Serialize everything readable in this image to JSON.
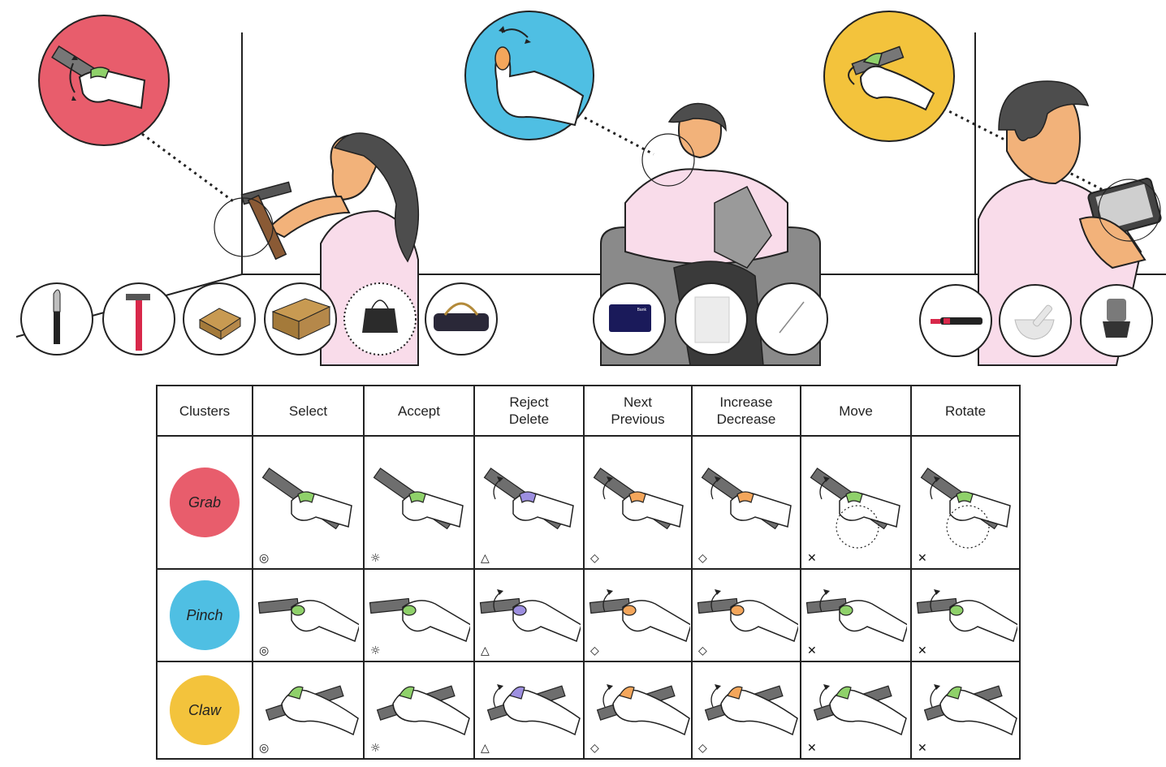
{
  "colors": {
    "grab": "#e85d6c",
    "pinch": "#4fbfe3",
    "claw": "#f3c33c",
    "finger_green": "#8fd16a",
    "finger_orange": "#f4a65b",
    "finger_purple": "#9d8fe0",
    "skin": "#f2b27a",
    "shirt": "#f9dcea",
    "hair": "#4d4d4d",
    "tool": "#6e6e6e",
    "sofa": "#8a8a8a"
  },
  "scene": {
    "grab_objects": [
      "knife",
      "hammer",
      "small-box",
      "large-box",
      "shopping-bag",
      "duffel-bag"
    ],
    "pinch_objects": [
      "bank-card",
      "paper-sheet",
      "needle"
    ],
    "claw_objects": [
      "marker-pen",
      "mortar-and-pestle",
      "dish-brush"
    ],
    "bank_card_text": "Bank"
  },
  "table": {
    "header_corner": "Clusters",
    "columns": [
      {
        "key": "select",
        "label": "Select"
      },
      {
        "key": "accept",
        "label": "Accept"
      },
      {
        "key": "reject",
        "label": "Reject\nDelete"
      },
      {
        "key": "next",
        "label": "Next\nPrevious"
      },
      {
        "key": "increase",
        "label": "Increase\nDecrease"
      },
      {
        "key": "move",
        "label": "Move"
      },
      {
        "key": "rotate",
        "label": "Rotate"
      }
    ],
    "rows": [
      {
        "cluster": "Grab",
        "color_key": "grab",
        "marks": [
          "◎",
          "☼",
          "△",
          "◇",
          "◇",
          "✕",
          "✕"
        ]
      },
      {
        "cluster": "Pinch",
        "color_key": "pinch",
        "marks": [
          "◎",
          "☼",
          "△",
          "◇",
          "◇",
          "✕",
          "✕"
        ]
      },
      {
        "cluster": "Claw",
        "color_key": "claw",
        "marks": [
          "◎",
          "☼",
          "△",
          "◇",
          "◇",
          "✕",
          "✕"
        ]
      }
    ]
  }
}
